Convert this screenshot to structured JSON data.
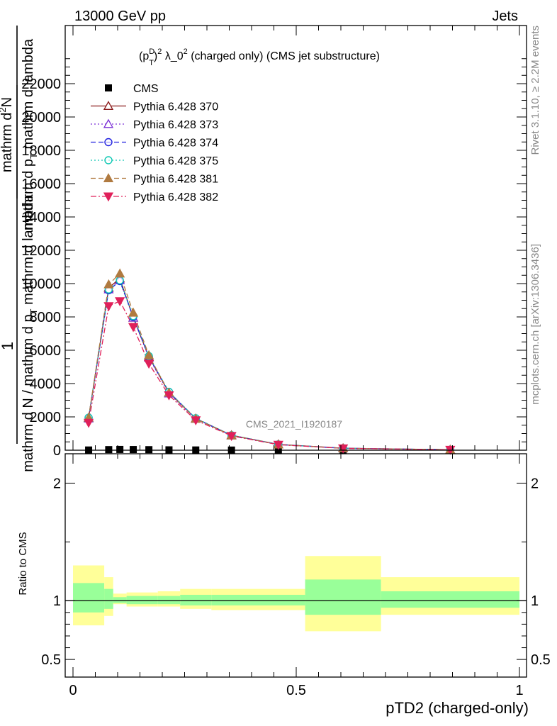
{
  "header": {
    "left": "13000 GeV pp",
    "right": "Jets"
  },
  "side": {
    "rivet": "Rivet 3.1.10, ≥ 2.2M events",
    "mcplots": "mcplots.cern.ch [arXiv:1306.3436]"
  },
  "watermark": "CMS_2021_I1920187",
  "chart_data": [
    {
      "type": "line",
      "title": "(p_T^D)^2 λ_0^2 (charged only) (CMS jet substructure)",
      "title_parts": {
        "p": "(p",
        "sup_d": "D",
        "sub_t": "T",
        "close": ")",
        "sup_2": "2",
        "mid": " λ_0",
        "sup_2b": "2",
        "rest": " (charged only) (CMS jet substructure)"
      },
      "ylabel_lines": [
        "1",
        "mathrm d N / mathrm d p_T mathrm d lambda",
        "mathrm d^2N",
        "mathrm d p_T mathrm d lambda"
      ],
      "ylabel_display": {
        "num_one": "1",
        "den_one": "mathrm d N / mathrm d p",
        "den_one_tail": "mathrm d lambda",
        "num_two": "mathrm d",
        "num_two_sup": "2",
        "num_two_tail": "N",
        "den_two": "mathrm d p",
        "den_two_sub": "T",
        "den_two_tail": "mathrm d lambda",
        "sub_t": "T"
      },
      "ylim": [
        0,
        24000
      ],
      "yticks": [
        0,
        2000,
        4000,
        6000,
        8000,
        10000,
        12000,
        14000,
        16000,
        18000,
        20000,
        22000
      ],
      "ytick_labels": [
        "0",
        "2000",
        "4000",
        "6000",
        "8000",
        "10000",
        "12000",
        "14000",
        "16000",
        "18000",
        "20000",
        "22000"
      ],
      "xlim": [
        0,
        1
      ],
      "bins": [
        [
          0.0,
          0.07
        ],
        [
          0.07,
          0.09
        ],
        [
          0.09,
          0.12
        ],
        [
          0.12,
          0.15
        ],
        [
          0.15,
          0.19
        ],
        [
          0.19,
          0.24
        ],
        [
          0.24,
          0.31
        ],
        [
          0.31,
          0.4
        ],
        [
          0.4,
          0.52
        ],
        [
          0.52,
          0.69
        ],
        [
          0.69,
          1.0
        ]
      ],
      "x": [
        0.035,
        0.08,
        0.105,
        0.135,
        0.17,
        0.215,
        0.275,
        0.355,
        0.46,
        0.605,
        0.845
      ],
      "series": [
        {
          "name": "CMS",
          "style": "data",
          "color": "#000000",
          "values": [
            12,
            35,
            45,
            40,
            32,
            22,
            14,
            8,
            4,
            2,
            1
          ]
        },
        {
          "name": "Pythia 6.428 370",
          "style": "solid",
          "color": "#8b1a1a",
          "marker": "triangle-open",
          "values": [
            1950,
            9750,
            10300,
            7950,
            5600,
            3450,
            1900,
            900,
            350,
            120,
            30
          ]
        },
        {
          "name": "Pythia 6.428 373",
          "style": "dotted",
          "color": "#7b2fd6",
          "marker": "triangle-open",
          "values": [
            1900,
            9650,
            10200,
            7950,
            5550,
            3400,
            1880,
            880,
            340,
            115,
            30
          ]
        },
        {
          "name": "Pythia 6.428 374",
          "style": "dashed",
          "color": "#2020e0",
          "marker": "circle-open",
          "values": [
            1950,
            9600,
            10150,
            8000,
            5600,
            3500,
            1900,
            890,
            345,
            118,
            30
          ]
        },
        {
          "name": "Pythia 6.428 375",
          "style": "dotted",
          "color": "#10c8b4",
          "marker": "circle-open",
          "values": [
            1950,
            9650,
            10200,
            8050,
            5650,
            3500,
            1920,
            900,
            350,
            120,
            30
          ]
        },
        {
          "name": "Pythia 6.428 381",
          "style": "dashed",
          "color": "#b07a40",
          "marker": "triangle-filled",
          "values": [
            1950,
            9950,
            10600,
            8250,
            5700,
            3450,
            1880,
            880,
            340,
            115,
            28
          ]
        },
        {
          "name": "Pythia 6.428 382",
          "style": "dashdot",
          "color": "#e0205a",
          "marker": "triangle-down-filled",
          "values": [
            1650,
            8650,
            8950,
            7400,
            5200,
            3300,
            1800,
            860,
            330,
            112,
            28
          ]
        }
      ]
    },
    {
      "type": "area",
      "ylabel": "Ratio to CMS",
      "xlabel": "pTD2 (charged-only)",
      "ylim": [
        0.35,
        2.25
      ],
      "yticks": [
        0.5,
        1,
        2
      ],
      "ytick_labels": [
        "0.5",
        "1",
        "2"
      ],
      "xlim": [
        0,
        1
      ],
      "xticks": [
        0,
        0.5,
        1
      ],
      "xtick_labels": [
        "0",
        "0.5",
        "1"
      ],
      "bins": [
        [
          0.0,
          0.07
        ],
        [
          0.07,
          0.09
        ],
        [
          0.09,
          0.12
        ],
        [
          0.12,
          0.15
        ],
        [
          0.15,
          0.19
        ],
        [
          0.19,
          0.24
        ],
        [
          0.24,
          0.31
        ],
        [
          0.31,
          0.4
        ],
        [
          0.4,
          0.52
        ],
        [
          0.52,
          0.69
        ],
        [
          0.69,
          1.0
        ]
      ],
      "band_yellow": [
        [
          0.79,
          1.3
        ],
        [
          0.87,
          1.2
        ],
        [
          0.97,
          1.06
        ],
        [
          0.95,
          1.07
        ],
        [
          0.95,
          1.07
        ],
        [
          0.95,
          1.08
        ],
        [
          0.93,
          1.1
        ],
        [
          0.92,
          1.1
        ],
        [
          0.92,
          1.1
        ],
        [
          0.74,
          1.38
        ],
        [
          0.88,
          1.2
        ]
      ],
      "band_green": [
        [
          0.9,
          1.15
        ],
        [
          0.93,
          1.1
        ],
        [
          0.98,
          1.03
        ],
        [
          0.97,
          1.04
        ],
        [
          0.97,
          1.04
        ],
        [
          0.97,
          1.04
        ],
        [
          0.96,
          1.05
        ],
        [
          0.96,
          1.05
        ],
        [
          0.96,
          1.05
        ],
        [
          0.88,
          1.18
        ],
        [
          0.94,
          1.08
        ]
      ],
      "colors": {
        "yellow": "#ffff99",
        "green": "#99ff99"
      }
    }
  ]
}
